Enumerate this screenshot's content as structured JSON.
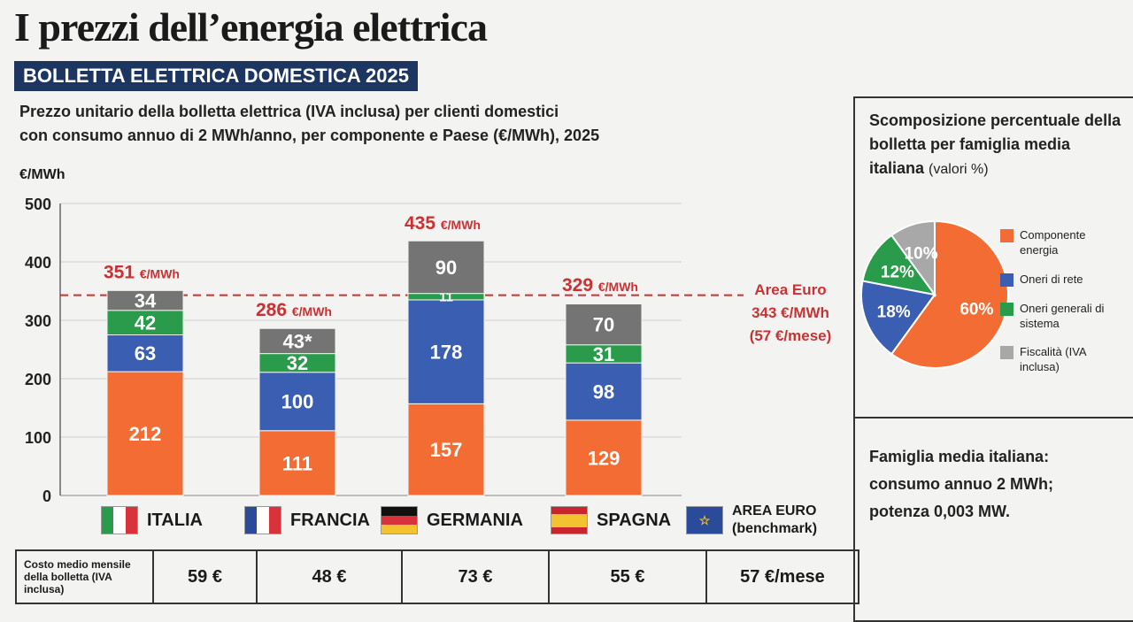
{
  "title": "I prezzi dell’energia elettrica",
  "banner": "BOLLETTA ELETTRICA DOMESTICA 2025",
  "subtitle_line1": "Prezzo unitario della bolletta elettrica (IVA inclusa) per clienti domestici",
  "subtitle_line2": "con consumo annuo di 2 MWh/anno, per componente e Paese (€/MWh), 2025",
  "chart_data": {
    "type": "bar",
    "stacked": true,
    "ylabel": "€/MWh",
    "ylim": [
      0,
      500
    ],
    "yticks": [
      "0",
      "100",
      "200",
      "300",
      "400",
      "500"
    ],
    "categories": [
      "ITALIA",
      "FRANCIA",
      "GERMANIA",
      "SPAGNA"
    ],
    "series": [
      {
        "name": "Componente energia",
        "color": "#f26c33",
        "values": [
          212,
          111,
          157,
          129
        ],
        "labels": [
          "212",
          "111",
          "157",
          "129"
        ]
      },
      {
        "name": "Oneri di rete",
        "color": "#3a5eb1",
        "values": [
          63,
          100,
          178,
          98
        ],
        "labels": [
          "63",
          "100",
          "178",
          "98"
        ]
      },
      {
        "name": "Oneri generali di sistema",
        "color": "#2a9a4b",
        "values": [
          42,
          32,
          11,
          31
        ],
        "labels": [
          "42",
          "32",
          "11",
          "31"
        ]
      },
      {
        "name": "Fiscalità (IVA inclusa)",
        "color": "#747474",
        "values": [
          34,
          43,
          90,
          70
        ],
        "labels": [
          "34",
          "43*",
          "90",
          "70"
        ]
      }
    ],
    "totals": [
      351,
      286,
      435,
      329
    ],
    "total_labels": [
      "351",
      "286",
      "435",
      "329"
    ],
    "total_unit": "€/MWh",
    "benchmark": {
      "value": 343,
      "line1": "Area Euro",
      "line2": "343 €/MWh",
      "line3": "(57 €/mese)",
      "color": "#c83232"
    }
  },
  "countries": [
    {
      "name": "ITALIA",
      "flag": "italy-flag"
    },
    {
      "name": "FRANCIA",
      "flag": "france-flag"
    },
    {
      "name": "GERMANIA",
      "flag": "germany-flag"
    },
    {
      "name": "SPAGNA",
      "flag": "spain-flag"
    },
    {
      "name": "AREA EURO",
      "sub": "(benchmark)",
      "flag": "eu-flag"
    }
  ],
  "cost_row": {
    "label": "Costo medio mensile della bolletta (IVA inclusa)",
    "values": [
      "59 €",
      "48 €",
      "73 €",
      "55 €",
      "57 €/mese"
    ]
  },
  "pie": {
    "title_bold": "Scomposizione percentuale della bolletta per famiglia media italiana",
    "title_small": "(valori %)",
    "slices": [
      {
        "label": "Componente energia",
        "value": 60,
        "text": "60%",
        "color": "#f26c33"
      },
      {
        "label": "Oneri di rete",
        "value": 18,
        "text": "18%",
        "color": "#3a5eb1"
      },
      {
        "label": "Oneri generali di sistema",
        "value": 12,
        "text": "12%",
        "color": "#2a9a4b"
      },
      {
        "label": "Fiscalità (IVA inclusa)",
        "value": 10,
        "text": "10%",
        "color": "#a8a8a8"
      }
    ]
  },
  "famiglia": {
    "line1": "Famiglia media italiana:",
    "line2": "consumo annuo 2 MWh;",
    "line3": "potenza 0,003 MW."
  }
}
